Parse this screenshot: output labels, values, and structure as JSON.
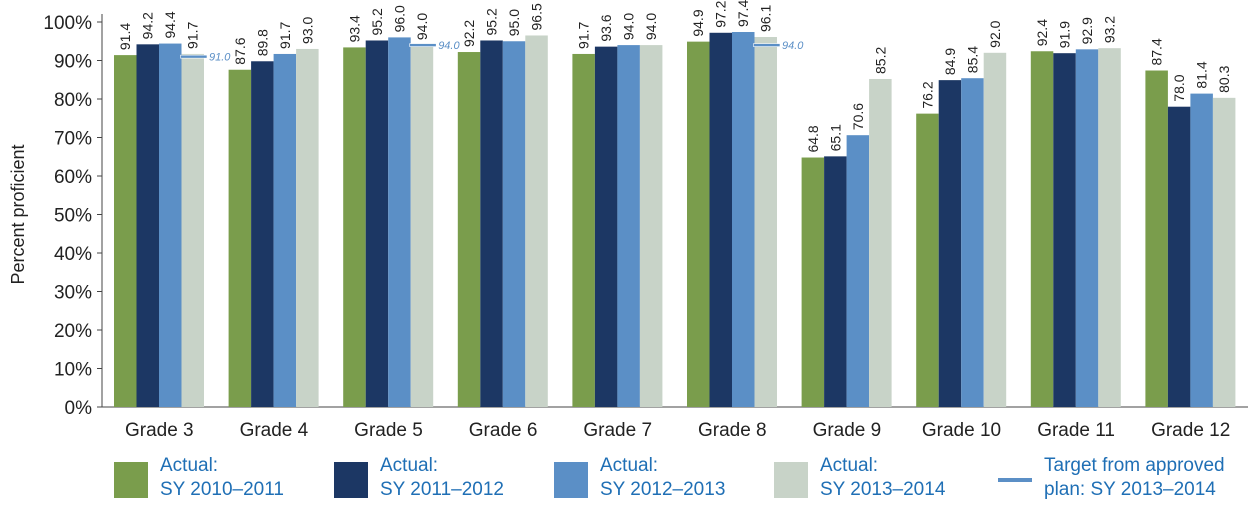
{
  "chart_data": {
    "type": "bar",
    "ylabel": "Percent proficient",
    "ylim": [
      0,
      100
    ],
    "yticks": [
      "0%",
      "10%",
      "20%",
      "30%",
      "40%",
      "50%",
      "60%",
      "70%",
      "80%",
      "90%",
      "100%"
    ],
    "grid": false,
    "legend_position": "bottom",
    "categories": [
      "Grade 3",
      "Grade 4",
      "Grade 5",
      "Grade 6",
      "Grade 7",
      "Grade 8",
      "Grade 9",
      "Grade 10",
      "Grade 11",
      "Grade 12"
    ],
    "series": [
      {
        "name": "Actual: SY 2010–2011",
        "color": "#7a9d4c",
        "values": [
          91.4,
          87.6,
          93.4,
          92.2,
          91.7,
          94.9,
          64.8,
          76.2,
          92.4,
          87.4
        ]
      },
      {
        "name": "Actual: SY 2011–2012",
        "color": "#1c3764",
        "values": [
          94.2,
          89.8,
          95.2,
          95.2,
          93.6,
          97.2,
          65.1,
          84.9,
          91.9,
          78.0
        ]
      },
      {
        "name": "Actual: SY 2012–2013",
        "color": "#5b8fc6",
        "values": [
          94.4,
          91.7,
          96.0,
          95.0,
          94.0,
          97.4,
          70.6,
          85.4,
          92.9,
          81.4
        ]
      },
      {
        "name": "Actual: SY 2013–2014",
        "color": "#c8d3c8",
        "values": [
          91.7,
          93.0,
          94.0,
          96.5,
          94.0,
          96.1,
          85.2,
          92.0,
          93.2,
          80.3
        ]
      }
    ],
    "targets": {
      "name": "Target from approved plan: SY 2013–2014",
      "color": "#5b8fc6",
      "points": [
        {
          "category": "Grade 3",
          "value": 91.0,
          "label": "91.0"
        },
        {
          "category": "Grade 5",
          "value": 94.0,
          "label": "94.0"
        },
        {
          "category": "Grade 8",
          "value": 94.0,
          "label": "94.0"
        }
      ]
    }
  },
  "legend": [
    {
      "line1": "Actual:",
      "line2": "SY 2010–2011",
      "color": "#7a9d4c",
      "kind": "box"
    },
    {
      "line1": "Actual:",
      "line2": "SY 2011–2012",
      "color": "#1c3764",
      "kind": "box"
    },
    {
      "line1": "Actual:",
      "line2": "SY 2012–2013",
      "color": "#5b8fc6",
      "kind": "box"
    },
    {
      "line1": "Actual:",
      "line2": "SY 2013–2014",
      "color": "#c8d3c8",
      "kind": "box"
    },
    {
      "line1": "Target from approved",
      "line2": "plan: SY 2013–2014",
      "color": "#5b8fc6",
      "kind": "line"
    }
  ]
}
